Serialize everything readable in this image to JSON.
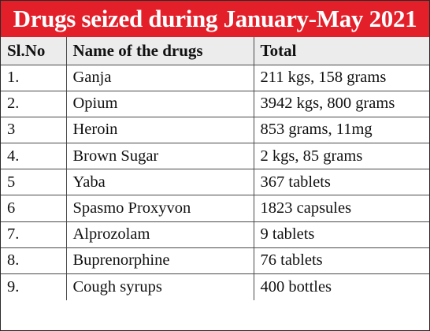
{
  "title": "Drugs seized during January-May 2021",
  "headers": [
    "Sl.No",
    "Name of the drugs",
    "Total"
  ],
  "rows": [
    [
      "1.",
      "Ganja",
      "211 kgs, 158 grams"
    ],
    [
      "2.",
      "Opium",
      "3942 kgs, 800 grams"
    ],
    [
      "3",
      "Heroin",
      "853 grams, 11mg"
    ],
    [
      "4.",
      "Brown Sugar",
      "2 kgs, 85 grams"
    ],
    [
      "5",
      "Yaba",
      "367 tablets"
    ],
    [
      "6",
      "Spasmo Proxyvon",
      "1823 capsules"
    ],
    [
      "7.",
      "Alprozolam",
      "9 tablets"
    ],
    [
      "8.",
      "Buprenorphine",
      "76 tablets"
    ],
    [
      "9.",
      "Cough syrups",
      "400 bottles"
    ]
  ],
  "colors": {
    "title_background": "#e3202a",
    "title_text": "#ffffff",
    "header_background": "#ececec"
  }
}
